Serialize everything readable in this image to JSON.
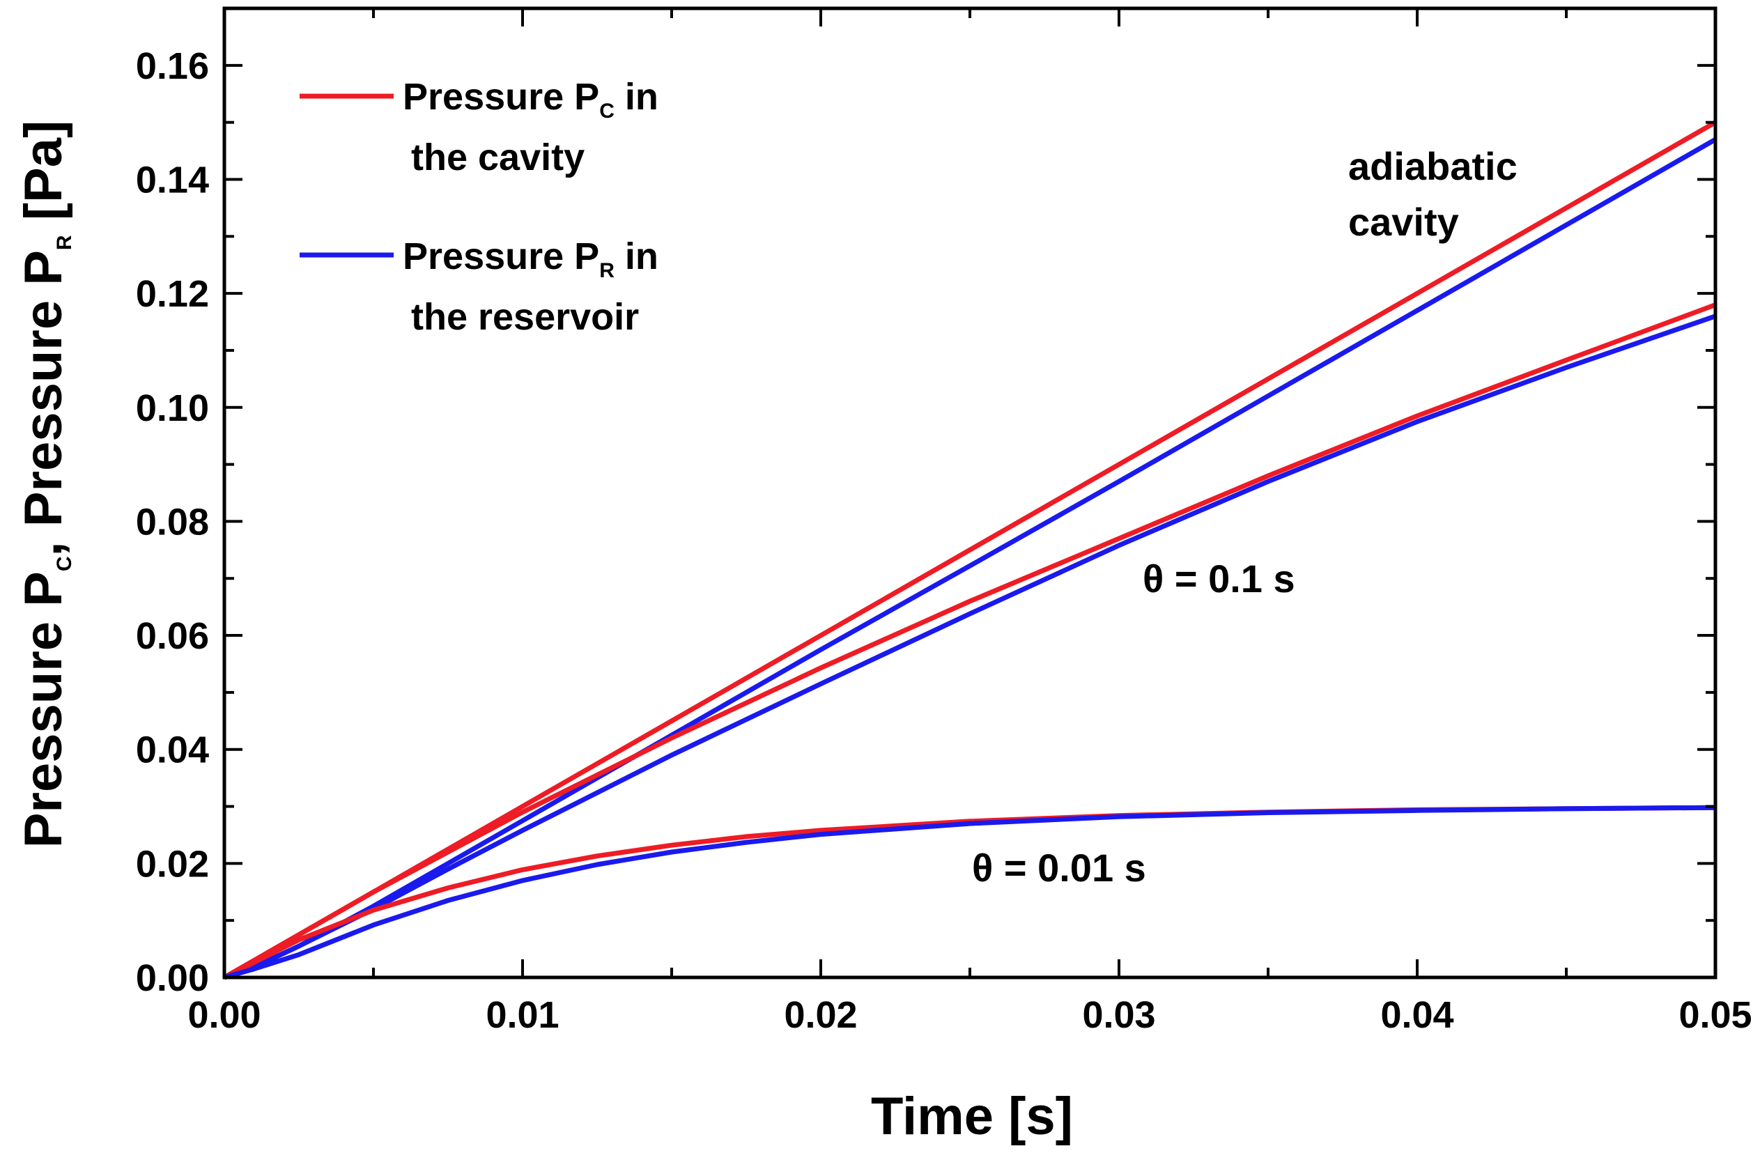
{
  "chart_data": {
    "type": "line",
    "xlabel": "Time [s]",
    "ylabel": {
      "prefix": "Pressure P",
      "sub1": "C",
      "mid": ", Pressure P",
      "sub2": "R",
      "suffix": " [Pa]"
    },
    "xlim": [
      0,
      0.05
    ],
    "ylim": [
      0,
      0.17
    ],
    "x_ticks": [
      "0.00",
      "0.01",
      "0.02",
      "0.03",
      "0.04",
      "0.05"
    ],
    "y_ticks": [
      "0.00",
      "0.02",
      "0.04",
      "0.06",
      "0.08",
      "0.10",
      "0.12",
      "0.14",
      "0.16"
    ],
    "colors": {
      "cavity": "#ee1c25",
      "reservoir": "#1a1aee"
    },
    "legend": [
      {
        "line1_prefix": "Pressure P",
        "line1_sub": "C",
        "line1_suffix": " in",
        "line2": "the cavity",
        "color_key": "cavity"
      },
      {
        "line1_prefix": "Pressure P",
        "line1_sub": "R",
        "line1_suffix": " in",
        "line2": "the reservoir",
        "color_key": "reservoir"
      }
    ],
    "annotations": {
      "adiabatic_line1": "adiabatic",
      "adiabatic_line2": "cavity",
      "theta_01": "θ = 0.1 s",
      "theta_001": "θ = 0.01 s"
    },
    "series": [
      {
        "name": "P_C adiabatic",
        "color_key": "cavity",
        "x": [
          0,
          0.005,
          0.01,
          0.015,
          0.02,
          0.025,
          0.03,
          0.035,
          0.04,
          0.045,
          0.05
        ],
        "y": [
          0,
          0.015,
          0.03,
          0.045,
          0.06,
          0.075,
          0.09,
          0.105,
          0.12,
          0.135,
          0.15
        ]
      },
      {
        "name": "P_R adiabatic",
        "color_key": "reservoir",
        "x": [
          0,
          0.001,
          0.0025,
          0.005,
          0.0075,
          0.01,
          0.015,
          0.02,
          0.025,
          0.03,
          0.035,
          0.04,
          0.045,
          0.05
        ],
        "y": [
          0,
          0.0018,
          0.0055,
          0.0125,
          0.02,
          0.0275,
          0.0425,
          0.0575,
          0.0722,
          0.087,
          0.102,
          0.117,
          0.132,
          0.147
        ]
      },
      {
        "name": "P_C theta 0.1 s",
        "color_key": "cavity",
        "x": [
          0,
          0.005,
          0.01,
          0.015,
          0.02,
          0.025,
          0.03,
          0.035,
          0.04,
          0.045,
          0.05
        ],
        "y": [
          0,
          0.015,
          0.029,
          0.042,
          0.0543,
          0.066,
          0.077,
          0.088,
          0.0985,
          0.1083,
          0.118
        ]
      },
      {
        "name": "P_R theta 0.1 s",
        "color_key": "reservoir",
        "x": [
          0,
          0.001,
          0.0025,
          0.005,
          0.0075,
          0.01,
          0.015,
          0.02,
          0.025,
          0.03,
          0.035,
          0.04,
          0.045,
          0.05
        ],
        "y": [
          0,
          0.0018,
          0.0055,
          0.012,
          0.019,
          0.0258,
          0.039,
          0.0515,
          0.0638,
          0.0758,
          0.087,
          0.0975,
          0.107,
          0.116
        ]
      },
      {
        "name": "P_C theta 0.01 s",
        "color_key": "cavity",
        "x": [
          0,
          0.0025,
          0.005,
          0.0075,
          0.01,
          0.0125,
          0.015,
          0.0175,
          0.02,
          0.025,
          0.03,
          0.035,
          0.04,
          0.045,
          0.05
        ],
        "y": [
          0,
          0.0066,
          0.0118,
          0.0157,
          0.0189,
          0.0213,
          0.0232,
          0.0247,
          0.0258,
          0.0274,
          0.0284,
          0.029,
          0.0294,
          0.0296,
          0.0298
        ]
      },
      {
        "name": "P_R theta 0.01 s",
        "color_key": "reservoir",
        "x": [
          0,
          0.001,
          0.0025,
          0.005,
          0.0075,
          0.01,
          0.0125,
          0.015,
          0.0175,
          0.02,
          0.025,
          0.03,
          0.035,
          0.04,
          0.045,
          0.05
        ],
        "y": [
          0,
          0.0015,
          0.004,
          0.0092,
          0.0135,
          0.017,
          0.0198,
          0.022,
          0.0237,
          0.0251,
          0.027,
          0.0282,
          0.0289,
          0.0293,
          0.0296,
          0.0298
        ]
      }
    ]
  }
}
